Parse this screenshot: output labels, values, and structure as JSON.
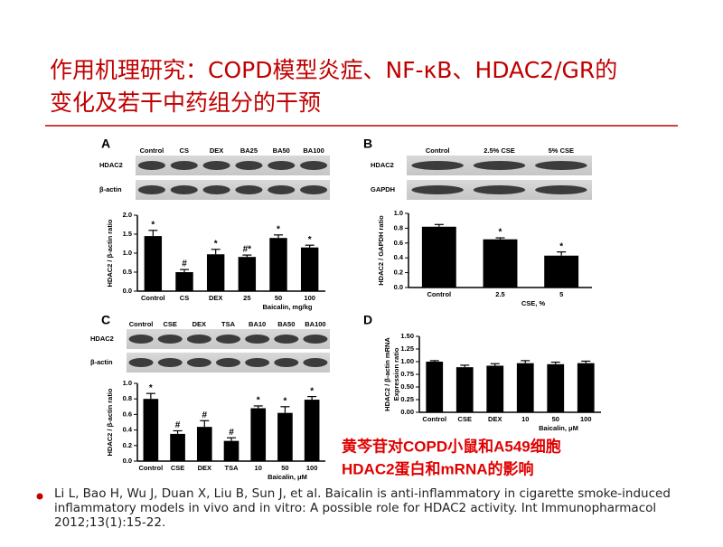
{
  "title": [
    "作用机理研究：COPD模型炎症、NF-κB、HDAC2/GR的",
    "变化及若干中药组分的干预"
  ],
  "caption": [
    "黄芩苷对COPD小鼠和A549细胞",
    "HDAC2蛋白和mRNA的影响"
  ],
  "reference": "Li L, Bao H, Wu J, Duan X, Liu B, Sun J, et al. Baicalin is anti-inflammatory in cigarette smoke-induced inflammatory models in vivo and in vitro: A possible role for HDAC2 activity. Int Immunopharmacol 2012;13(1):15-22.",
  "chart_data": [
    {
      "type": "bar",
      "panel": "A",
      "blot_lanes": [
        "Control",
        "CS",
        "DEX",
        "BA25",
        "BA50",
        "BA100"
      ],
      "blot_rows": [
        "HDAC2",
        "β-actin"
      ],
      "categories": [
        "Control",
        "CS",
        "DEX",
        "25",
        "50",
        "100"
      ],
      "values": [
        1.45,
        0.5,
        0.97,
        0.9,
        1.4,
        1.15
      ],
      "errors": [
        0.15,
        0.07,
        0.13,
        0.05,
        0.08,
        0.06
      ],
      "annotations": [
        "*",
        "#",
        "*",
        "#*",
        "*",
        "*"
      ],
      "xlabel": "Baicalin, mg/kg",
      "ylabel": "HDAC2 / β-actin ratio",
      "color": "#000000",
      "ylim": [
        0,
        2
      ],
      "yticks": [
        {
          "value": 0,
          "label": "0.0"
        },
        0.5,
        {
          "value": 1,
          "label": "1.0"
        },
        1.5,
        {
          "value": 2,
          "label": "2.0"
        }
      ]
    },
    {
      "type": "bar",
      "panel": "B",
      "blot_lanes": [
        "Control",
        "2.5% CSE",
        "5% CSE"
      ],
      "blot_rows": [
        "HDAC2",
        "GAPDH"
      ],
      "categories": [
        "Control",
        "2.5",
        "5"
      ],
      "values": [
        0.82,
        0.65,
        0.43
      ],
      "errors": [
        0.03,
        0.02,
        0.05
      ],
      "annotations": [
        null,
        "*",
        "*"
      ],
      "xlabel": "CSE, %",
      "ylabel": "HDAC2 / GAPDH ratio",
      "color": "#000000",
      "ylim": [
        0,
        1
      ],
      "yticks": [
        {
          "value": 0,
          "label": "0.0"
        },
        0.2,
        0.4,
        0.6,
        0.8,
        {
          "value": 1,
          "label": "1.0"
        }
      ]
    },
    {
      "type": "bar",
      "panel": "C",
      "blot_lanes": [
        "Control",
        "CSE",
        "DEX",
        "TSA",
        "BA10",
        "BA50",
        "BA100"
      ],
      "blot_rows": [
        "HDAC2",
        "β-actin"
      ],
      "categories": [
        "Control",
        "CSE",
        "DEX",
        "TSA",
        "10",
        "50",
        "100"
      ],
      "values": [
        0.8,
        0.35,
        0.44,
        0.26,
        0.68,
        0.62,
        0.79
      ],
      "errors": [
        0.07,
        0.04,
        0.08,
        0.04,
        0.03,
        0.08,
        0.04
      ],
      "annotations": [
        "*",
        "#",
        "#",
        "#",
        "*",
        "*",
        "*"
      ],
      "xlabel": "Baicalin, μM",
      "ylabel": "HDAC2 / β-actin ratio",
      "color": "#000000",
      "ylim": [
        0,
        1
      ],
      "yticks": [
        {
          "value": 0,
          "label": "0.0"
        },
        0.2,
        0.4,
        0.6,
        0.8,
        {
          "value": 1,
          "label": "1.0"
        }
      ]
    },
    {
      "type": "bar",
      "panel": "D",
      "categories": [
        "Control",
        "CSE",
        "DEX",
        "10",
        "50",
        "100"
      ],
      "values": [
        1.0,
        0.89,
        0.92,
        0.97,
        0.95,
        0.97
      ],
      "errors": [
        0.02,
        0.04,
        0.04,
        0.05,
        0.04,
        0.04
      ],
      "xlabel": "Baicalin, μM",
      "ylabel": [
        "HDAC2 / β-actin mRNA",
        "Expression ratio"
      ],
      "color": "#000000",
      "ylim": [
        0,
        1.5
      ],
      "yticks": [
        {
          "value": 0,
          "label": "0.00"
        },
        0.25,
        {
          "value": 0.5,
          "label": "0.50"
        },
        0.75,
        {
          "value": 1,
          "label": "1.00"
        },
        1.25,
        {
          "value": 1.5,
          "label": "1.50"
        }
      ]
    }
  ]
}
